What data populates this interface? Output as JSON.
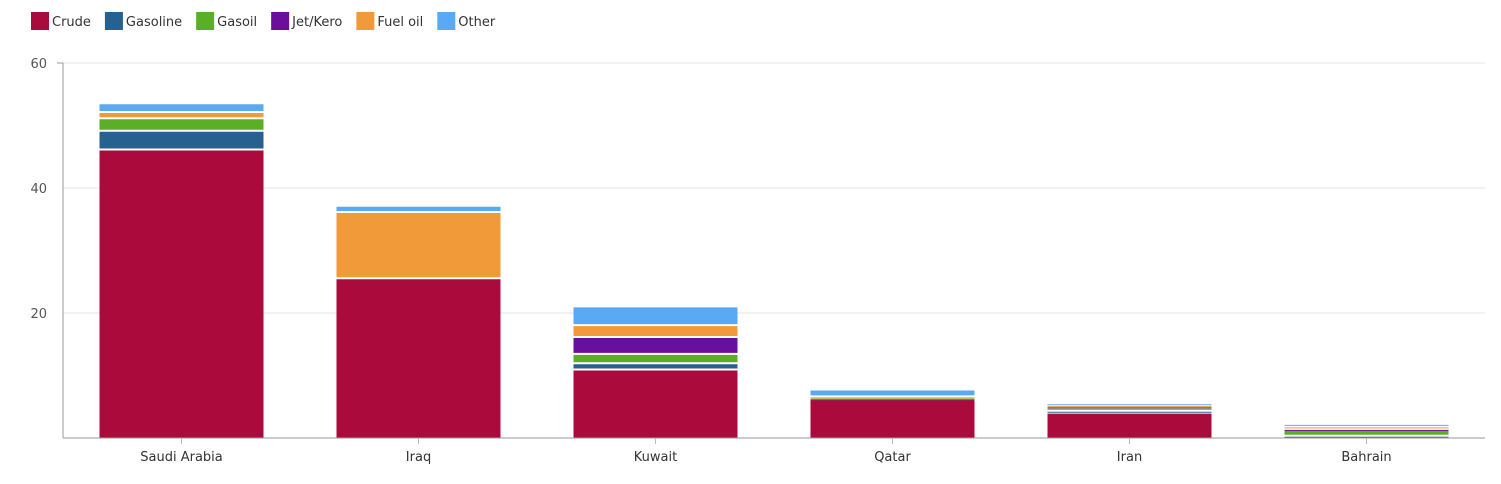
{
  "chart_data": {
    "type": "bar",
    "stacked": true,
    "categories": [
      "Saudi Arabia",
      "Iraq",
      "Kuwait",
      "Qatar",
      "Iran",
      "Bahrain"
    ],
    "series": [
      {
        "name": "Crude",
        "color": "#ab0b3c",
        "values": [
          46.0,
          25.4,
          10.8,
          6.1,
          3.9,
          0.1
        ]
      },
      {
        "name": "Gasoline",
        "color": "#26618f",
        "values": [
          3.0,
          0.0,
          1.0,
          0.1,
          0.3,
          0.1
        ]
      },
      {
        "name": "Gasoil",
        "color": "#5aaf26",
        "values": [
          2.0,
          0.0,
          1.5,
          0.1,
          0.5,
          1.0
        ]
      },
      {
        "name": "Jet/Kero",
        "color": "#6a0f9b",
        "values": [
          0.0,
          0.0,
          2.7,
          0.0,
          0.2,
          0.1
        ]
      },
      {
        "name": "Fuel oil",
        "color": "#f09a3a",
        "values": [
          1.0,
          10.6,
          1.9,
          0.2,
          0.2,
          0.4
        ]
      },
      {
        "name": "Other",
        "color": "#5aa9f5",
        "values": [
          1.4,
          1.0,
          3.0,
          1.1,
          0.3,
          0.4
        ]
      }
    ],
    "y_ticks": [
      "20",
      "40",
      "60"
    ],
    "ylim": [
      0,
      60
    ],
    "grid": true,
    "legend_position": "top-left",
    "title": "",
    "xlabel": "",
    "ylabel": ""
  }
}
